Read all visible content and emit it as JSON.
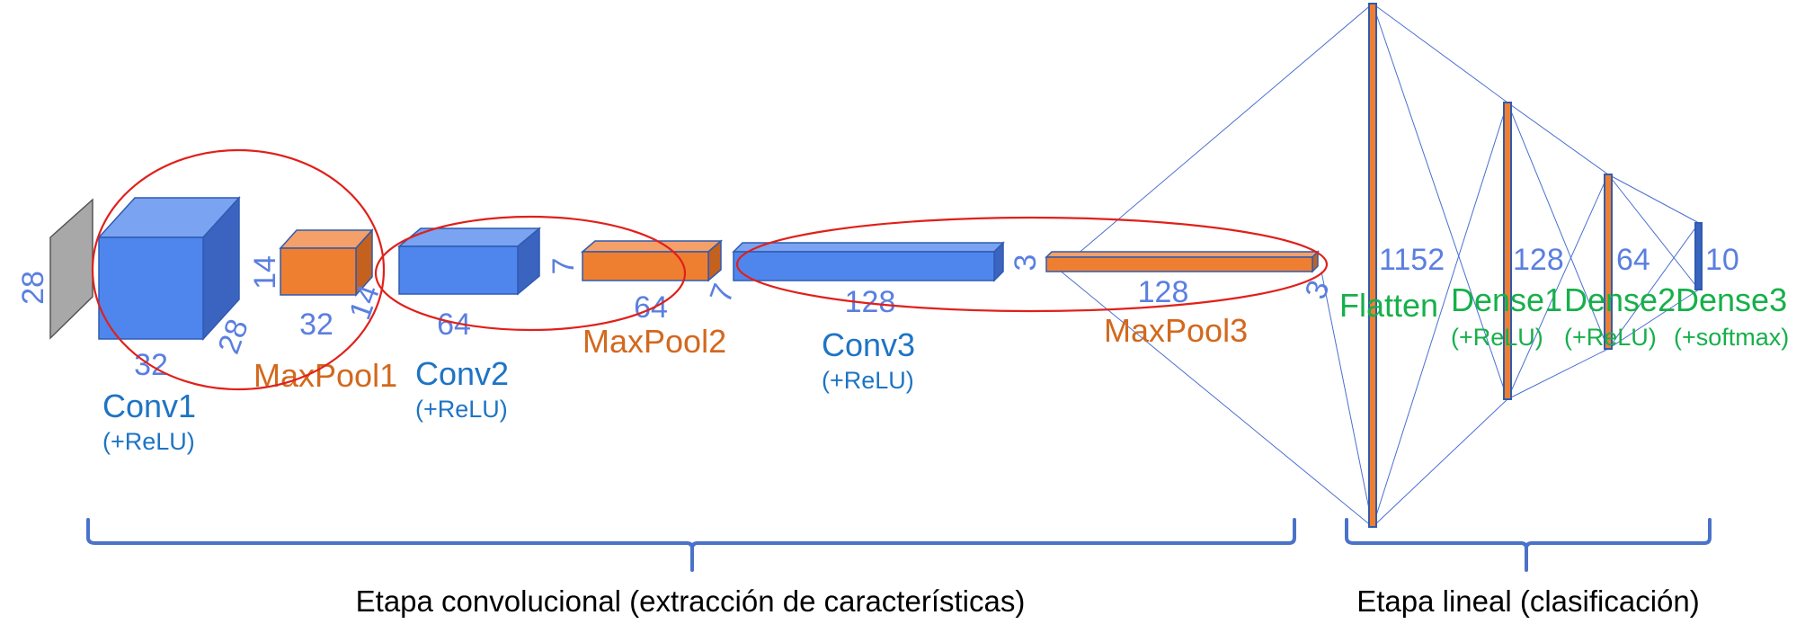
{
  "colors": {
    "conv_front": "#4f86ee",
    "conv_top": "#7aa3f2",
    "conv_side": "#3a64c0",
    "pool_front": "#ef7f30",
    "pool_top": "#f4a068",
    "pool_side": "#c4611f",
    "input": "#a8a8a8",
    "dimension_text": "#5b7fe0",
    "conv_label": "#1e74c4",
    "pool_label": "#d2691e",
    "dense_label": "#16b04a",
    "highlight_ellipse": "#e0201a",
    "brace": "#4a72c8"
  },
  "input": {
    "size": "28"
  },
  "layers": {
    "conv1": {
      "height": "28",
      "depth": "32",
      "name": "Conv1",
      "activation": "(+ReLU)"
    },
    "maxpool1": {
      "height": "14",
      "width": "32",
      "depth": "14",
      "name": "MaxPool1"
    },
    "conv2": {
      "width": "64",
      "name": "Conv2",
      "activation": "(+ReLU)"
    },
    "maxpool2": {
      "height": "7",
      "width": "64",
      "depth": "7",
      "name": "MaxPool2"
    },
    "conv3": {
      "width": "128",
      "name": "Conv3",
      "activation": "(+ReLU)"
    },
    "maxpool3": {
      "height": "3",
      "width": "128",
      "depth": "3",
      "name": "MaxPool3"
    }
  },
  "dense_layers": [
    {
      "units": "1152",
      "name": "Flatten",
      "activation": ""
    },
    {
      "units": "128",
      "name": "Dense1",
      "activation": "(+ReLU)"
    },
    {
      "units": "64",
      "name": "Dense2",
      "activation": "(+ReLU)"
    },
    {
      "units": "10",
      "name": "Dense3",
      "activation": "(+softmax)"
    }
  ],
  "stages": {
    "convolutional": "Etapa convolucional (extracción de características)",
    "linear": "Etapa lineal (clasificación)"
  }
}
